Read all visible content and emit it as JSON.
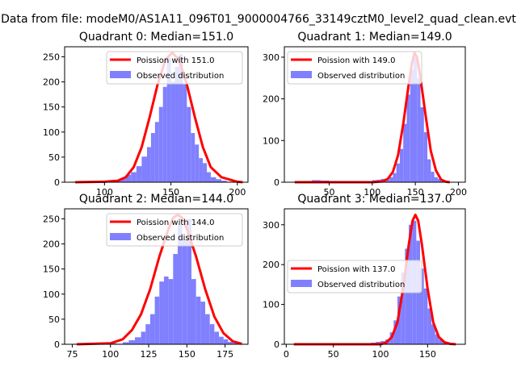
{
  "figure_title": "Data from file: modeM0/AS1A11_096T01_9000004766_33149cztM0_level2_quad_clean.evt",
  "colors": {
    "poisson": "#ff0000",
    "observed": "#8080ff",
    "axis": "#000000"
  },
  "chart_data": [
    {
      "type": "bar",
      "title": "Quadrant 0: Median=151.0",
      "xlim": [
        70,
        208
      ],
      "ylim": [
        0,
        270
      ],
      "xticks": [
        100,
        150,
        200
      ],
      "yticks": [
        0,
        50,
        100,
        150,
        200,
        250
      ],
      "hist": {
        "x": [
          76,
          80,
          84,
          88,
          92,
          96,
          100,
          104,
          108,
          112,
          116,
          120,
          124,
          128,
          132,
          135,
          138,
          141,
          144,
          147,
          150,
          153,
          156,
          159,
          162,
          165,
          168,
          171,
          174,
          177,
          180,
          184,
          188,
          192,
          196,
          200
        ],
        "values": [
          1,
          0,
          1,
          0,
          1,
          0,
          1,
          2,
          4,
          8,
          15,
          20,
          32,
          51,
          70,
          98,
          120,
          150,
          190,
          248,
          200,
          230,
          255,
          195,
          150,
          98,
          75,
          48,
          38,
          20,
          10,
          6,
          3,
          1,
          1,
          0
        ]
      },
      "poisson": {
        "x": [
          78,
          100,
          110,
          116,
          122,
          128,
          134,
          140,
          146,
          151,
          156,
          162,
          168,
          174,
          180,
          188,
          200,
          204
        ],
        "values": [
          0,
          1,
          3,
          10,
          30,
          70,
          130,
          195,
          245,
          258,
          245,
          195,
          130,
          70,
          30,
          10,
          1,
          0
        ]
      },
      "legend": [
        "Poission with 151.0",
        "Observed distribution"
      ]
    },
    {
      "type": "bar",
      "title": "Quadrant 1: Median=149.0",
      "xlim": [
        -2,
        208
      ],
      "ylim": [
        0,
        325
      ],
      "xticks": [
        50,
        100,
        150,
        200
      ],
      "yticks": [
        0,
        100,
        200,
        300
      ],
      "hist": {
        "x": [
          10,
          20,
          30,
          40,
          50,
          60,
          70,
          80,
          90,
          95,
          100,
          105,
          110,
          115,
          120,
          124,
          128,
          132,
          136,
          140,
          144,
          148,
          152,
          156,
          160,
          164,
          168,
          172,
          176,
          180,
          184
        ],
        "values": [
          2,
          3,
          5,
          4,
          2,
          3,
          1,
          2,
          3,
          2,
          5,
          6,
          8,
          6,
          12,
          22,
          45,
          80,
          140,
          210,
          270,
          300,
          250,
          180,
          120,
          55,
          25,
          12,
          8,
          4,
          2
        ]
      },
      "poisson": {
        "x": [
          10,
          100,
          112,
          118,
          124,
          130,
          136,
          142,
          146,
          149,
          152,
          156,
          162,
          168,
          174,
          180,
          186,
          190
        ],
        "values": [
          0,
          0,
          2,
          8,
          25,
          65,
          140,
          230,
          285,
          310,
          300,
          250,
          160,
          75,
          28,
          6,
          1,
          0
        ]
      },
      "legend": [
        "Poission with 149.0",
        "Observed distribution"
      ]
    },
    {
      "type": "bar",
      "title": "Quadrant 2: Median=144.0",
      "xlim": [
        70,
        190
      ],
      "ylim": [
        0,
        270
      ],
      "xticks": [
        75,
        100,
        125,
        150,
        175
      ],
      "yticks": [
        0,
        50,
        100,
        150,
        200,
        250
      ],
      "hist": {
        "x": [
          76,
          80,
          84,
          88,
          92,
          96,
          100,
          104,
          108,
          112,
          116,
          120,
          123,
          126,
          129,
          132,
          135,
          138,
          141,
          144,
          147,
          150,
          153,
          156,
          159,
          162,
          165,
          168,
          171,
          174,
          177,
          180,
          184
        ],
        "values": [
          1,
          0,
          2,
          3,
          1,
          0,
          2,
          1,
          4,
          8,
          14,
          25,
          40,
          60,
          95,
          125,
          135,
          130,
          180,
          238,
          210,
          250,
          130,
          95,
          85,
          60,
          40,
          25,
          15,
          10,
          5,
          3,
          1
        ]
      },
      "poisson": {
        "x": [
          78,
          100,
          108,
          114,
          120,
          126,
          132,
          138,
          141,
          144,
          147,
          150,
          156,
          162,
          168,
          174,
          180,
          186
        ],
        "values": [
          0,
          2,
          10,
          28,
          60,
          110,
          175,
          230,
          252,
          258,
          252,
          230,
          175,
          110,
          55,
          22,
          6,
          1
        ]
      },
      "legend": [
        "Poission with 144.0",
        "Observed distribution"
      ]
    },
    {
      "type": "bar",
      "title": "Quadrant 3: Median=137.0",
      "xlim": [
        -2,
        190
      ],
      "ylim": [
        0,
        340
      ],
      "xticks": [
        0,
        50,
        100,
        150
      ],
      "yticks": [
        0,
        100,
        200,
        300
      ],
      "hist": {
        "x": [
          10,
          20,
          30,
          40,
          50,
          60,
          70,
          80,
          90,
          95,
          100,
          105,
          110,
          114,
          118,
          122,
          126,
          130,
          134,
          138,
          142,
          146,
          150,
          154,
          158,
          162,
          166,
          170,
          174
        ],
        "values": [
          2,
          1,
          3,
          2,
          1,
          3,
          2,
          3,
          4,
          6,
          8,
          12,
          30,
          60,
          120,
          180,
          240,
          300,
          310,
          260,
          190,
          140,
          90,
          50,
          25,
          12,
          6,
          3,
          1
        ]
      },
      "poisson": {
        "x": [
          8,
          100,
          106,
          112,
          118,
          124,
          130,
          134,
          137,
          140,
          144,
          150,
          156,
          162,
          168,
          174,
          180
        ],
        "values": [
          0,
          0,
          4,
          18,
          55,
          140,
          250,
          310,
          325,
          310,
          250,
          140,
          55,
          18,
          5,
          1,
          0
        ]
      },
      "legend": [
        "Poission with 137.0",
        "Observed distribution"
      ]
    }
  ]
}
